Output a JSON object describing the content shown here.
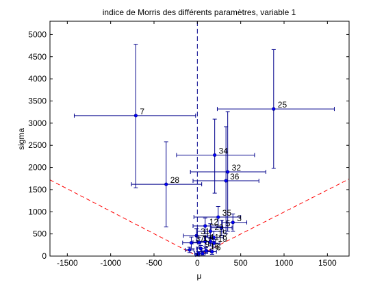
{
  "chart_data": {
    "type": "scatter",
    "title": "indice de Morris des différents paramètres, variable 1",
    "xlabel": "μ",
    "ylabel": "sigma",
    "xlim": [
      -1700,
      1750
    ],
    "ylim": [
      0,
      5300
    ],
    "xticks": [
      -1500,
      -1000,
      -500,
      0,
      500,
      1000,
      1500
    ],
    "yticks": [
      0,
      500,
      1000,
      1500,
      2000,
      2500,
      3000,
      3500,
      4000,
      4500,
      5000
    ],
    "grid": false,
    "legend": "none",
    "colors": {
      "points": "#0000ff",
      "errorbars": "#00008b",
      "vline": "#00008b",
      "cone": "#ff0000",
      "labels": "#000000"
    },
    "reference_lines": {
      "vertical_at_x": 0,
      "cone": [
        {
          "x": [
            -1700,
            -50
          ],
          "y": [
            1720,
            50
          ]
        },
        {
          "x": [
            50,
            1750
          ],
          "y": [
            50,
            1740
          ]
        }
      ]
    },
    "points": [
      {
        "label": "7",
        "mu": -710,
        "sigma": 3170,
        "mu_err": [
          -1420,
          -20
        ],
        "sigma_err": [
          1540,
          4780
        ]
      },
      {
        "label": "25",
        "mu": 880,
        "sigma": 3320,
        "mu_err": [
          230,
          1580
        ],
        "sigma_err": [
          1980,
          4660
        ]
      },
      {
        "label": "34",
        "mu": 200,
        "sigma": 2280,
        "mu_err": [
          -240,
          660
        ],
        "sigma_err": [
          1420,
          3090
        ]
      },
      {
        "label": "32",
        "mu": 350,
        "sigma": 1900,
        "mu_err": [
          -80,
          790
        ],
        "sigma_err": [
          560,
          3260
        ]
      },
      {
        "label": "36",
        "mu": 330,
        "sigma": 1700,
        "mu_err": [
          -50,
          710
        ],
        "sigma_err": [
          500,
          2920
        ]
      },
      {
        "label": "28",
        "mu": -360,
        "sigma": 1620,
        "mu_err": [
          -760,
          50
        ],
        "sigma_err": [
          660,
          2580
        ]
      },
      {
        "label": "35",
        "mu": 240,
        "sigma": 880,
        "mu_err": [
          -40,
          500
        ],
        "sigma_err": [
          660,
          1120
        ]
      },
      {
        "label": "3",
        "mu": 410,
        "sigma": 760,
        "mu_err": [
          290,
          570
        ],
        "sigma_err": [
          560,
          950
        ]
      },
      {
        "label": "12",
        "mu": 90,
        "sigma": 680,
        "mu_err": [
          -50,
          240
        ],
        "sigma_err": [
          500,
          860
        ]
      },
      {
        "label": "5",
        "mu": 280,
        "sigma": 640,
        "mu_err": [
          160,
          400
        ],
        "sigma_err": [
          470,
          810
        ]
      },
      {
        "label": "29",
        "mu": 150,
        "sigma": 560,
        "mu_err": [
          0,
          300
        ],
        "sigma_err": [
          390,
          730
        ]
      },
      {
        "label": "31",
        "mu": -10,
        "sigma": 460,
        "mu_err": [
          -160,
          120
        ],
        "sigma_err": [
          300,
          620
        ]
      },
      {
        "label": "15",
        "mu": 190,
        "sigma": 420,
        "mu_err": [
          80,
          300
        ],
        "sigma_err": [
          280,
          560
        ]
      },
      {
        "label": "37",
        "mu": -70,
        "sigma": 300,
        "mu_err": [
          -170,
          40
        ],
        "sigma_err": [
          170,
          430
        ]
      },
      {
        "label": "17",
        "mu": 20,
        "sigma": 310,
        "mu_err": [
          -50,
          100
        ],
        "sigma_err": [
          200,
          420
        ]
      },
      {
        "label": "4",
        "mu": 90,
        "sigma": 330,
        "mu_err": [
          20,
          160
        ],
        "sigma_err": [
          220,
          440
        ]
      },
      {
        "label": "1",
        "mu": 150,
        "sigma": 330,
        "mu_err": [
          90,
          210
        ],
        "sigma_err": [
          230,
          430
        ]
      },
      {
        "label": "19",
        "mu": 190,
        "sigma": 290,
        "mu_err": [
          130,
          260
        ],
        "sigma_err": [
          200,
          380
        ]
      },
      {
        "label": "9",
        "mu": 40,
        "sigma": 170,
        "mu_err": [
          -10,
          100
        ],
        "sigma_err": [
          100,
          240
        ]
      },
      {
        "label": "16",
        "mu": 100,
        "sigma": 120,
        "mu_err": [
          50,
          150
        ],
        "sigma_err": [
          60,
          190
        ]
      },
      {
        "label": "6",
        "mu": 170,
        "sigma": 100,
        "mu_err": [
          120,
          220
        ],
        "sigma_err": [
          40,
          160
        ]
      },
      {
        "label": "",
        "mu": -90,
        "sigma": 140,
        "mu_err": [
          -140,
          -40
        ],
        "sigma_err": [
          80,
          200
        ]
      },
      {
        "label": "",
        "mu": 10,
        "sigma": 60,
        "mu_err": [
          -30,
          50
        ],
        "sigma_err": [
          20,
          100
        ]
      },
      {
        "label": "",
        "mu": 0,
        "sigma": 30,
        "mu_err": [
          -20,
          20
        ],
        "sigma_err": [
          10,
          50
        ]
      },
      {
        "label": "",
        "mu": 60,
        "sigma": 60,
        "mu_err": [
          30,
          90
        ],
        "sigma_err": [
          20,
          100
        ]
      }
    ]
  }
}
